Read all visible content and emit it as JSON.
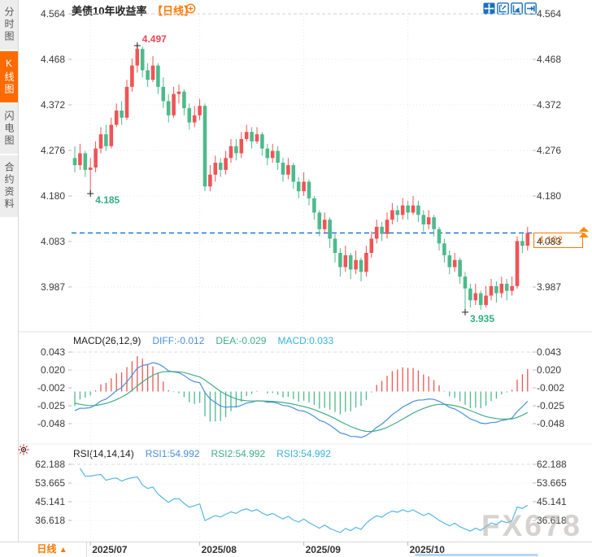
{
  "header": {
    "title": "美债10年收益率",
    "interval_tag": "【日线】"
  },
  "sidebar": {
    "items": [
      {
        "label": "分时图",
        "active": false
      },
      {
        "label": "K线图",
        "active": true
      },
      {
        "label": "闪电图",
        "active": false
      },
      {
        "label": "合约资料",
        "active": false
      }
    ]
  },
  "toolbar": {
    "icons": [
      "crosshair-pan-icon",
      "axis-zoom-icon",
      "auto-fit-icon",
      "go-latest-icon"
    ]
  },
  "price_marker": {
    "label": "4.102"
  },
  "bottom_bar": {
    "interval_label": "日线",
    "arrow": "▲"
  },
  "watermark": "FX678",
  "colors": {
    "up": "#ef5456",
    "down": "#4eba8c",
    "accent_orange": "#ff7700",
    "price_line_blue": "#1878e0",
    "diff_blue": "#4a90d9",
    "dea_green": "#3fae85",
    "macd_cyan": "#38b2da",
    "rsi_line": "#55b7e5"
  },
  "chart_data": {
    "type": "candlestick",
    "title": "美债10年收益率",
    "interval": "日线",
    "x_labels": [
      "2025/07",
      "2025/08",
      "2025/09",
      "2025/10"
    ],
    "x_label_candle_indices": [
      3,
      24,
      44,
      64
    ],
    "y_axis_labels": [
      "4.564",
      "4.468",
      "4.372",
      "4.276",
      "4.180",
      "4.083",
      "3.987"
    ],
    "y_top_value": 4.564,
    "y_step": 0.096,
    "current_price": 4.102,
    "annotations": [
      {
        "text": "4.497",
        "index": 12,
        "type": "high",
        "color": "#e8485c"
      },
      {
        "text": "4.185",
        "index": 3,
        "type": "low",
        "color": "#2fae82"
      },
      {
        "text": "3.935",
        "index": 75,
        "type": "low",
        "color": "#2fae82"
      }
    ],
    "candles": [
      [
        4.26,
        4.285,
        4.23,
        4.245
      ],
      [
        4.245,
        4.29,
        4.235,
        4.27
      ],
      [
        4.27,
        4.275,
        4.22,
        4.235
      ],
      [
        4.235,
        4.26,
        4.185,
        4.24
      ],
      [
        4.24,
        4.295,
        4.23,
        4.28
      ],
      [
        4.28,
        4.325,
        4.27,
        4.31
      ],
      [
        4.31,
        4.33,
        4.275,
        4.285
      ],
      [
        4.285,
        4.345,
        4.28,
        4.33
      ],
      [
        4.33,
        4.375,
        4.325,
        4.36
      ],
      [
        4.36,
        4.38,
        4.33,
        4.345
      ],
      [
        4.345,
        4.425,
        4.34,
        4.41
      ],
      [
        4.41,
        4.47,
        4.4,
        4.455
      ],
      [
        4.455,
        4.497,
        4.44,
        4.49
      ],
      [
        4.49,
        4.495,
        4.43,
        4.445
      ],
      [
        4.445,
        4.46,
        4.41,
        4.425
      ],
      [
        4.425,
        4.475,
        4.42,
        4.455
      ],
      [
        4.455,
        4.46,
        4.395,
        4.41
      ],
      [
        4.41,
        4.43,
        4.365,
        4.38
      ],
      [
        4.38,
        4.395,
        4.335,
        4.35
      ],
      [
        4.35,
        4.41,
        4.345,
        4.395
      ],
      [
        4.395,
        4.415,
        4.375,
        4.4
      ],
      [
        4.4,
        4.405,
        4.35,
        4.365
      ],
      [
        4.365,
        4.375,
        4.32,
        4.335
      ],
      [
        4.335,
        4.37,
        4.325,
        4.35
      ],
      [
        4.35,
        4.385,
        4.34,
        4.37
      ],
      [
        4.37,
        4.375,
        4.19,
        4.2
      ],
      [
        4.2,
        4.245,
        4.19,
        4.225
      ],
      [
        4.225,
        4.265,
        4.21,
        4.25
      ],
      [
        4.25,
        4.26,
        4.22,
        4.235
      ],
      [
        4.235,
        4.275,
        4.225,
        4.26
      ],
      [
        4.26,
        4.3,
        4.25,
        4.285
      ],
      [
        4.285,
        4.3,
        4.255,
        4.27
      ],
      [
        4.27,
        4.315,
        4.26,
        4.3
      ],
      [
        4.3,
        4.33,
        4.295,
        4.315
      ],
      [
        4.315,
        4.325,
        4.28,
        4.295
      ],
      [
        4.295,
        4.325,
        4.29,
        4.31
      ],
      [
        4.31,
        4.315,
        4.265,
        4.28
      ],
      [
        4.28,
        4.29,
        4.245,
        4.26
      ],
      [
        4.26,
        4.29,
        4.25,
        4.275
      ],
      [
        4.275,
        4.285,
        4.235,
        4.25
      ],
      [
        4.25,
        4.26,
        4.21,
        4.225
      ],
      [
        4.225,
        4.26,
        4.215,
        4.245
      ],
      [
        4.245,
        4.25,
        4.195,
        4.21
      ],
      [
        4.21,
        4.22,
        4.175,
        4.19
      ],
      [
        4.19,
        4.23,
        4.18,
        4.21
      ],
      [
        4.21,
        4.215,
        4.16,
        4.175
      ],
      [
        4.175,
        4.18,
        4.13,
        4.145
      ],
      [
        4.145,
        4.15,
        4.095,
        4.11
      ],
      [
        4.11,
        4.145,
        4.1,
        4.13
      ],
      [
        4.13,
        4.135,
        4.07,
        4.09
      ],
      [
        4.09,
        4.1,
        4.04,
        4.06
      ],
      [
        4.06,
        4.07,
        4.01,
        4.03
      ],
      [
        4.03,
        4.075,
        4.02,
        4.055
      ],
      [
        4.055,
        4.06,
        4.005,
        4.025
      ],
      [
        4.025,
        4.065,
        4.015,
        4.045
      ],
      [
        4.045,
        4.05,
        4.0,
        4.02
      ],
      [
        4.02,
        4.075,
        4.01,
        4.06
      ],
      [
        4.06,
        4.105,
        4.05,
        4.09
      ],
      [
        4.09,
        4.13,
        4.08,
        4.115
      ],
      [
        4.115,
        4.125,
        4.085,
        4.1
      ],
      [
        4.1,
        4.145,
        4.09,
        4.13
      ],
      [
        4.13,
        4.165,
        4.12,
        4.15
      ],
      [
        4.15,
        4.16,
        4.125,
        4.14
      ],
      [
        4.14,
        4.175,
        4.13,
        4.16
      ],
      [
        4.16,
        4.17,
        4.13,
        4.145
      ],
      [
        4.145,
        4.18,
        4.14,
        4.16
      ],
      [
        4.16,
        4.17,
        4.125,
        4.14
      ],
      [
        4.14,
        4.15,
        4.105,
        4.12
      ],
      [
        4.12,
        4.15,
        4.11,
        4.135
      ],
      [
        4.135,
        4.14,
        4.095,
        4.11
      ],
      [
        4.11,
        4.115,
        4.065,
        4.08
      ],
      [
        4.08,
        4.09,
        4.04,
        4.055
      ],
      [
        4.055,
        4.065,
        4.015,
        4.03
      ],
      [
        4.03,
        4.06,
        4.02,
        4.045
      ],
      [
        4.045,
        4.05,
        3.995,
        4.01
      ],
      [
        4.01,
        4.02,
        3.935,
        3.985
      ],
      [
        3.985,
        3.995,
        3.945,
        3.96
      ],
      [
        3.96,
        3.995,
        3.95,
        3.975
      ],
      [
        3.975,
        3.98,
        3.94,
        3.95
      ],
      [
        3.95,
        3.99,
        3.945,
        3.97
      ],
      [
        3.97,
        4.005,
        3.96,
        3.99
      ],
      [
        3.99,
        4.0,
        3.955,
        3.975
      ],
      [
        3.975,
        4.01,
        3.965,
        3.995
      ],
      [
        3.995,
        4.005,
        3.96,
        3.98
      ],
      [
        3.98,
        4.01,
        3.97,
        3.99
      ],
      [
        3.99,
        4.095,
        3.985,
        4.085
      ],
      [
        4.085,
        4.1,
        4.06,
        4.075
      ],
      [
        4.075,
        4.115,
        4.065,
        4.102
      ]
    ],
    "indicators": {
      "macd": {
        "label": "MACD(26,12,9)",
        "values_text": {
          "diff": "DIFF:-0.012",
          "dea": "DEA:-0.029",
          "macd": "MACD:0.033"
        },
        "y_axis_labels": [
          "0.043",
          "0.020",
          "-0.002",
          "-0.025",
          "-0.048"
        ]
      },
      "rsi": {
        "label": "RSI(14,14,14)",
        "values_text": {
          "rsi1": "RSI1:54.992",
          "rsi2": "RSI2:54.992",
          "rsi3": "RSI3:54.992"
        },
        "y_axis_labels": [
          "62.188",
          "53.665",
          "45.141",
          "36.618"
        ]
      }
    }
  }
}
